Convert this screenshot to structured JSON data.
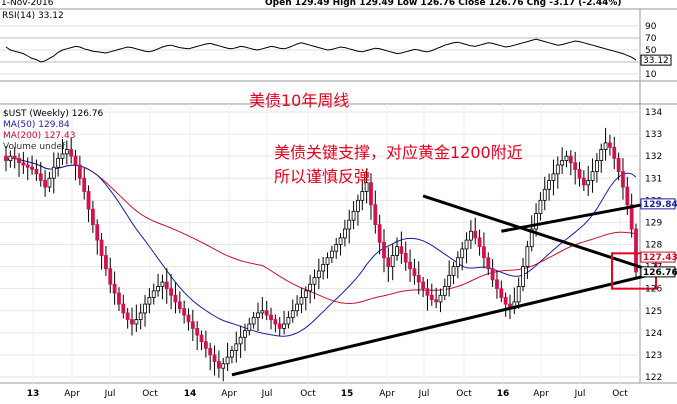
{
  "header": {
    "date": "1-Nov-2016",
    "quote": "Open 129.49  High 129.49  Low 126.76  Close 126.76  Chg -3.17 (-2.44%)"
  },
  "rsi_panel": {
    "label": "RSI(14) 33.12",
    "ticks": [
      "90",
      "70",
      "50",
      "30",
      "10"
    ],
    "last_value": "33.12",
    "values": [
      55,
      50,
      48,
      46,
      44,
      40,
      36,
      34,
      30,
      32,
      36,
      40,
      46,
      50,
      52,
      54,
      56,
      55,
      52,
      50,
      48,
      47,
      46,
      45,
      47,
      49,
      51,
      53,
      55,
      54,
      52,
      50,
      48,
      47,
      49,
      52,
      55,
      57,
      58,
      56,
      54,
      53,
      52,
      54,
      56,
      58,
      60,
      61,
      59,
      57,
      55,
      53,
      52,
      54,
      56,
      55,
      53,
      51,
      50,
      52,
      54,
      56,
      55,
      53,
      52,
      54,
      57,
      60,
      62,
      60,
      58,
      56,
      54,
      52,
      50,
      51,
      53,
      55,
      54,
      52,
      50,
      48,
      47,
      49,
      51,
      53,
      52,
      50,
      48,
      46,
      44,
      45,
      47,
      49,
      51,
      50,
      48,
      47,
      49,
      52,
      55,
      58,
      60,
      62,
      63,
      61,
      59,
      57,
      56,
      58,
      60,
      62,
      61,
      59,
      57,
      55,
      56,
      58,
      60,
      62,
      64,
      66,
      68,
      66,
      64,
      62,
      60,
      58,
      59,
      61,
      63,
      65,
      64,
      62,
      60,
      58,
      56,
      54,
      52,
      50,
      48,
      46,
      44,
      41,
      38,
      33.12
    ]
  },
  "price_panel": {
    "legend": {
      "symbol": "$UST (Weekly) 126.76",
      "ma50": "MA(50) 129.84",
      "ma200": "MA(200) 127.43",
      "volume": "Volume undef"
    },
    "ticks": [
      "134",
      "133",
      "132",
      "131",
      "130",
      "129",
      "128",
      "127",
      "126",
      "125",
      "124",
      "123",
      "122"
    ],
    "last_price": "126.76",
    "ma50_value": "129.84",
    "ma200_value": "127.43",
    "x_labels": [
      "13",
      "Apr",
      "Jul",
      "Oct",
      "14",
      "Apr",
      "Jul",
      "Oct",
      "15",
      "Apr",
      "Jul",
      "Oct",
      "16",
      "Apr",
      "Jul",
      "Oct"
    ],
    "bold_x_labels": [
      "13",
      "14",
      "15",
      "16"
    ]
  },
  "annotations": {
    "title": "美债10年周线",
    "note_line1": "美债关键支撑，对应黄金1200附近",
    "note_line2": "所以谨慎反弹"
  },
  "chart_data": {
    "type": "candlestick",
    "title": "$UST (Weekly)",
    "ylim": [
      121.8,
      134.5
    ],
    "close_series_approx": [
      131.8,
      132.0,
      131.9,
      131.7,
      131.6,
      131.5,
      131.4,
      131.2,
      130.9,
      130.6,
      131.0,
      131.5,
      131.9,
      132.1,
      132.3,
      132.0,
      131.6,
      131.0,
      130.4,
      129.6,
      128.9,
      128.2,
      127.5,
      126.9,
      126.2,
      125.8,
      125.3,
      124.9,
      124.6,
      124.4,
      124.6,
      124.9,
      125.3,
      125.6,
      125.9,
      126.1,
      126.3,
      126.0,
      125.7,
      125.4,
      125.1,
      124.8,
      124.5,
      124.2,
      123.9,
      123.6,
      123.3,
      123.0,
      122.7,
      122.4,
      122.6,
      122.9,
      123.2,
      123.5,
      123.8,
      124.1,
      124.4,
      124.7,
      124.9,
      125.0,
      124.8,
      124.6,
      124.4,
      124.2,
      124.4,
      124.7,
      125.0,
      125.3,
      125.6,
      125.9,
      126.2,
      126.5,
      126.8,
      127.1,
      127.4,
      127.7,
      128.0,
      128.3,
      128.7,
      129.1,
      129.5,
      130.0,
      130.4,
      130.8,
      129.8,
      128.9,
      128.1,
      127.4,
      127.0,
      127.5,
      127.9,
      127.6,
      127.2,
      126.9,
      126.6,
      126.3,
      126.0,
      125.7,
      125.5,
      125.4,
      125.7,
      126.1,
      126.6,
      127.0,
      127.4,
      127.8,
      128.2,
      128.6,
      128.3,
      127.9,
      127.4,
      126.9,
      126.4,
      126.0,
      125.6,
      125.3,
      125.1,
      125.4,
      126.1,
      127.0,
      127.9,
      128.7,
      129.4,
      130.0,
      130.5,
      130.9,
      131.2,
      131.6,
      131.8,
      132.0,
      131.7,
      131.4,
      131.0,
      130.7,
      130.9,
      131.3,
      131.8,
      132.3,
      132.6,
      132.4,
      131.9,
      131.3,
      130.6,
      129.8,
      128.7,
      126.76
    ],
    "series": [
      {
        "name": "MA(50)",
        "last": 129.84
      },
      {
        "name": "MA(200)",
        "last": 127.43
      }
    ],
    "trendlines": [
      {
        "from": [
          52,
          122.1
        ],
        "to": [
          160,
          126.8
        ],
        "color": "#000000"
      },
      {
        "from": [
          96,
          130.2
        ],
        "to": [
          160,
          126.6
        ],
        "color": "#000000"
      },
      {
        "from": [
          114,
          128.6
        ],
        "to": [
          160,
          130.0
        ],
        "color": "#000000"
      }
    ],
    "support_zone": [
      126.0,
      127.6
    ],
    "xlabels": [
      "13",
      "Apr",
      "Jul",
      "Oct",
      "14",
      "Apr",
      "Jul",
      "Oct",
      "15",
      "Apr",
      "Jul",
      "Oct",
      "16",
      "Apr",
      "Jul",
      "Oct"
    ]
  }
}
